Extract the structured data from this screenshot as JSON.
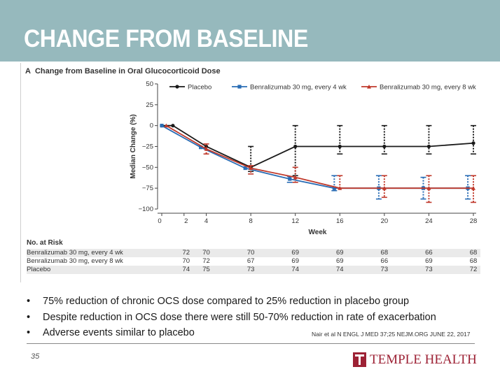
{
  "slide": {
    "title": "CHANGE FROM BASELINE",
    "page_number": "35",
    "citation": "Nair et al N ENGL J MED 37;25  NEJM.ORG  JUNE 22, 2017",
    "logo_text": "TEMPLE HEALTH",
    "bullets": [
      "75% reduction of chronic OCS dose compared to 25% reduction in placebo group",
      "Despite reduction in OCS dose there were still 50-70% reduction in rate of exacerbation",
      "Adverse events similar to placebo"
    ],
    "colors": {
      "header": "#96b9bd",
      "title_text": "#ffffff",
      "brand": "#9d2235"
    }
  },
  "figure": {
    "panel_letter": "A",
    "panel_title": "Change from Baseline in Oral Glucocorticoid Dose"
  },
  "chart_data": {
    "type": "line",
    "title": "Change from Baseline in Oral Glucocorticoid Dose",
    "xlabel": "Week",
    "ylabel": "Median Change (%)",
    "xlim": [
      0,
      28
    ],
    "ylim": [
      -100,
      50
    ],
    "xticks": [
      0,
      2,
      4,
      8,
      12,
      16,
      20,
      24,
      28
    ],
    "xtick_labels": [
      "0",
      "2",
      "4",
      "8",
      "12",
      "16",
      "20",
      "24",
      "28"
    ],
    "yticks": [
      50,
      25,
      0,
      -25,
      -50,
      -75,
      -100
    ],
    "ytick_labels": [
      "50",
      "25",
      "0",
      "−25",
      "−50",
      "−75",
      "−100"
    ],
    "legend_position": "top",
    "grid": false,
    "series": [
      {
        "name": "Placebo",
        "color": "#1a1a1a",
        "marker": "diamond",
        "x": [
          0,
          1,
          4,
          8,
          12,
          16,
          20,
          24,
          28
        ],
        "y": [
          0,
          0,
          -25,
          -50,
          -25,
          -25,
          -25,
          -25,
          -21
        ],
        "err_low": [
          null,
          null,
          null,
          -55,
          -60,
          -34,
          -34,
          -34,
          -34
        ],
        "err_high": [
          null,
          null,
          null,
          -25,
          0,
          0,
          0,
          0,
          0
        ]
      },
      {
        "name": "Benralizumab 30 mg, every 4 wk",
        "color": "#2a6db5",
        "marker": "square",
        "x": [
          0,
          3.5,
          7.5,
          11.5,
          15.5,
          19.5,
          23.5,
          27.5
        ],
        "y": [
          0,
          -26,
          -51,
          -64,
          -75,
          -75,
          -75,
          -75
        ],
        "err_low": [
          null,
          null,
          null,
          -68,
          -78,
          -88,
          -88,
          -88
        ],
        "err_high": [
          null,
          null,
          null,
          -61,
          -60,
          -60,
          -62,
          -60
        ]
      },
      {
        "name": "Benralizumab 30 mg, every 8 wk",
        "color": "#c0392b",
        "marker": "triangle",
        "x": [
          0.4,
          4,
          8,
          12,
          16,
          20,
          24,
          28
        ],
        "y": [
          0,
          -28,
          -51,
          -62,
          -75,
          -75,
          -75,
          -75
        ],
        "err_low": [
          null,
          -34,
          -58,
          -68,
          -75,
          -86,
          -92,
          -92
        ],
        "err_high": [
          null,
          -22,
          -48,
          -50,
          -60,
          -60,
          -60,
          -60
        ]
      }
    ],
    "no_at_risk": {
      "heading": "No. at Risk",
      "weeks": [
        2,
        4,
        8,
        12,
        16,
        20,
        24,
        28
      ],
      "rows": [
        {
          "label": "Benralizumab 30 mg, every 4 wk",
          "values": [
            "72",
            "70",
            "70",
            "69",
            "69",
            "68",
            "66",
            "68"
          ]
        },
        {
          "label": "Benralizumab 30 mg, every 8 wk",
          "values": [
            "70",
            "72",
            "67",
            "69",
            "69",
            "66",
            "69",
            "68"
          ]
        },
        {
          "label": "Placebo",
          "values": [
            "74",
            "75",
            "73",
            "74",
            "74",
            "73",
            "73",
            "72"
          ]
        }
      ]
    }
  }
}
